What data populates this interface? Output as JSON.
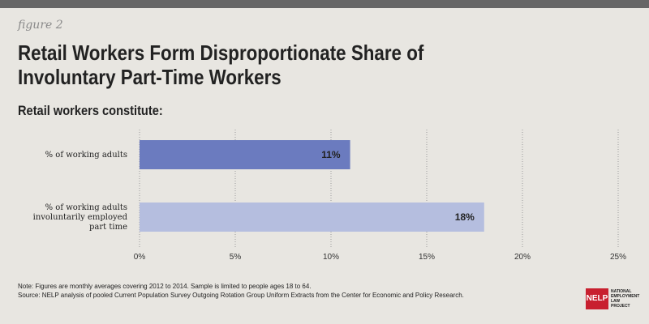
{
  "figure_label": "figure 2",
  "title_line1": "Retail Workers Form Disproportionate Share of",
  "title_line2": "Involuntary Part-Time Workers",
  "subtitle": "Retail workers constitute:",
  "chart_data": {
    "type": "bar",
    "orientation": "horizontal",
    "categories": [
      [
        "% of working adults"
      ],
      [
        "% of working adults",
        "involuntarily employed",
        "part time"
      ]
    ],
    "values": [
      11,
      18
    ],
    "value_labels": [
      "11%",
      "18%"
    ],
    "bar_colors": [
      "#6b7bbf",
      "#b5bedf"
    ],
    "xlim": [
      0,
      25
    ],
    "x_ticks": [
      0,
      5,
      10,
      15,
      20,
      25
    ],
    "x_tick_labels": [
      "0%",
      "5%",
      "10%",
      "15%",
      "20%",
      "25%"
    ],
    "grid": "vertical-dotted",
    "legend": "none"
  },
  "notes": {
    "line1": "Note: Figures are monthly averages covering 2012 to 2014.  Sample is limited to people ages 18 to 64.",
    "line2": "Source: NELP analysis of pooled Current Population Survey Outgoing Rotation Group Uniform Extracts from the Center for Economic and Policy Research."
  },
  "logo": {
    "mark": "NELP",
    "text": [
      "NATIONAL",
      "EMPLOYMENT",
      "LAW",
      "PROJECT"
    ]
  }
}
